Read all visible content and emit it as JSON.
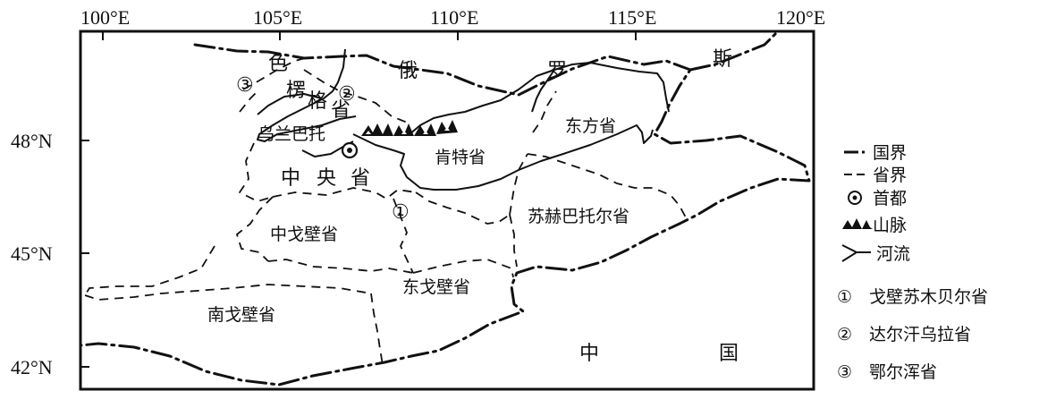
{
  "axes": {
    "longitude_labels": [
      "100°E",
      "105°E",
      "110°E",
      "115°E",
      "120°E"
    ],
    "latitude_labels": [
      "48°N",
      "45°N",
      "42°N"
    ]
  },
  "places": {
    "russia": [
      "俄",
      "罗",
      "斯"
    ],
    "china": [
      "中",
      "国"
    ],
    "selenge": [
      "色",
      "楞",
      "格",
      "省"
    ],
    "ulaanbaatar": "乌兰巴托",
    "tov": [
      "中",
      "央",
      "省"
    ],
    "khentii": "肯特省",
    "dornod": "东方省",
    "sukhbaatar": "苏赫巴托尔省",
    "dundgovi": "中戈壁省",
    "dornogovi": "东戈壁省",
    "omnogovi": "南戈壁省",
    "marker_1": "①",
    "marker_2": "②",
    "marker_3": "③"
  },
  "legend": {
    "national_border": "国界",
    "provincial_border": "省界",
    "capital": "首都",
    "mountain": "山脉",
    "river": "河流"
  },
  "notes": [
    {
      "mark": "①",
      "text": "戈壁苏木贝尔省"
    },
    {
      "mark": "②",
      "text": "达尔汗乌拉省"
    },
    {
      "mark": "③",
      "text": "鄂尔浑省"
    }
  ]
}
